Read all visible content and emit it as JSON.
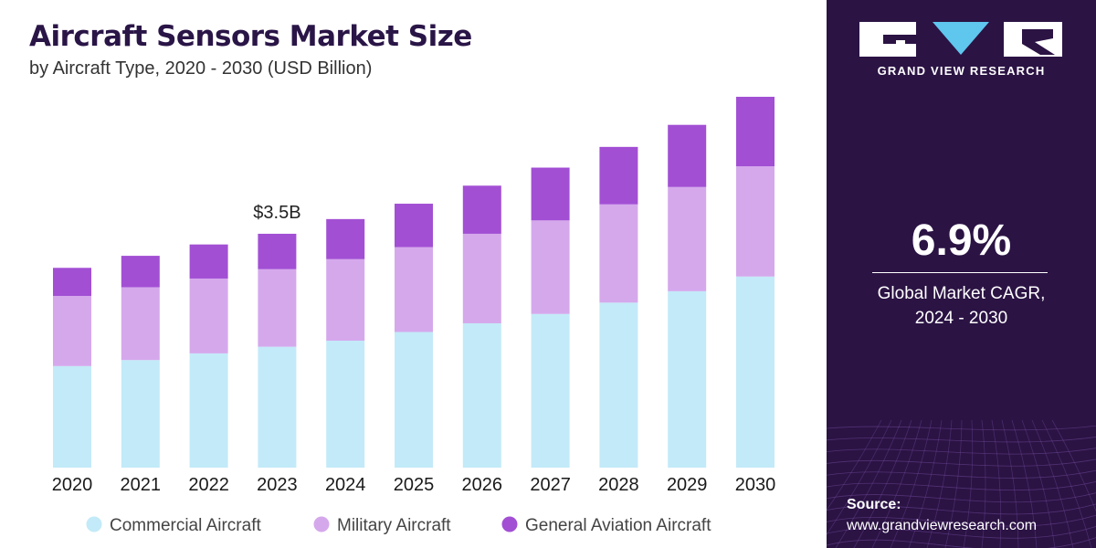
{
  "chart_data": {
    "type": "bar",
    "stacked": true,
    "title": "Aircraft Sensors Market Size",
    "subtitle": "by Aircraft Type, 2020 - 2030 (USD Billion)",
    "categories": [
      "2020",
      "2021",
      "2022",
      "2023",
      "2024",
      "2025",
      "2026",
      "2027",
      "2028",
      "2029",
      "2030"
    ],
    "series": [
      {
        "name": "Commercial Aircraft",
        "color": "#c3eaf8",
        "values": [
          1.52,
          1.61,
          1.71,
          1.81,
          1.9,
          2.03,
          2.16,
          2.3,
          2.47,
          2.64,
          2.86
        ]
      },
      {
        "name": "Military Aircraft",
        "color": "#d5a8ec",
        "values": [
          1.05,
          1.09,
          1.12,
          1.16,
          1.22,
          1.27,
          1.34,
          1.4,
          1.47,
          1.56,
          1.65
        ]
      },
      {
        "name": "General Aviation Aircraft",
        "color": "#a24fd4",
        "values": [
          0.42,
          0.47,
          0.51,
          0.53,
          0.6,
          0.65,
          0.72,
          0.79,
          0.86,
          0.93,
          1.04
        ]
      }
    ],
    "annotations": [
      {
        "category": "2023",
        "text": "$3.5B"
      }
    ],
    "ylim": [
      0,
      5.7
    ],
    "grid": false,
    "legend_position": "bottom"
  },
  "panel": {
    "brand_name": "GRAND VIEW RESEARCH",
    "logo_icon": "gvr-logo-icon",
    "cagr_value": "6.9%",
    "cagr_label_line1": "Global Market CAGR,",
    "cagr_label_line2": "2024 - 2030",
    "source_label": "Source:",
    "source_url": "www.grandviewresearch.com",
    "background_color": "#2b1344"
  }
}
